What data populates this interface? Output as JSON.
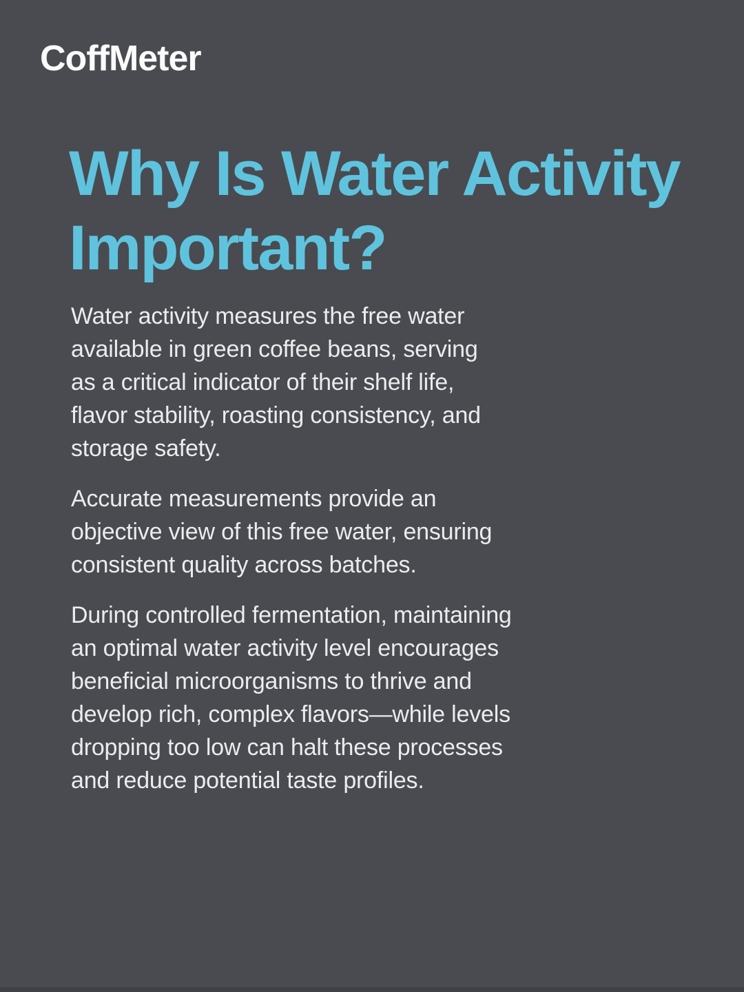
{
  "colors": {
    "background": "#494b50",
    "heading": "#5fc3de",
    "body-text": "#ebeced",
    "logo": "#fbfbfb"
  },
  "brand": {
    "name": "CoffMeter"
  },
  "heading": {
    "lines": [
      "Why Is Water Activity",
      "Important?"
    ]
  },
  "content": {
    "paragraphs": [
      {
        "lines": [
          "Water activity measures the free water",
          "available in green coffee beans, serving",
          "as a critical indicator of their shelf life,",
          "flavor stability, roasting consistency, and",
          "storage safety."
        ]
      },
      {
        "lines": [
          "Accurate measurements provide an",
          "objective view of this free water, ensuring",
          "consistent quality across batches."
        ]
      },
      {
        "lines": [
          "During controlled fermentation, maintaining",
          "an optimal water activity level encourages",
          "beneficial microorganisms to thrive and",
          "develop rich, complex flavors—while levels",
          "dropping too low can halt these processes",
          "and reduce potential taste profiles."
        ]
      }
    ]
  }
}
